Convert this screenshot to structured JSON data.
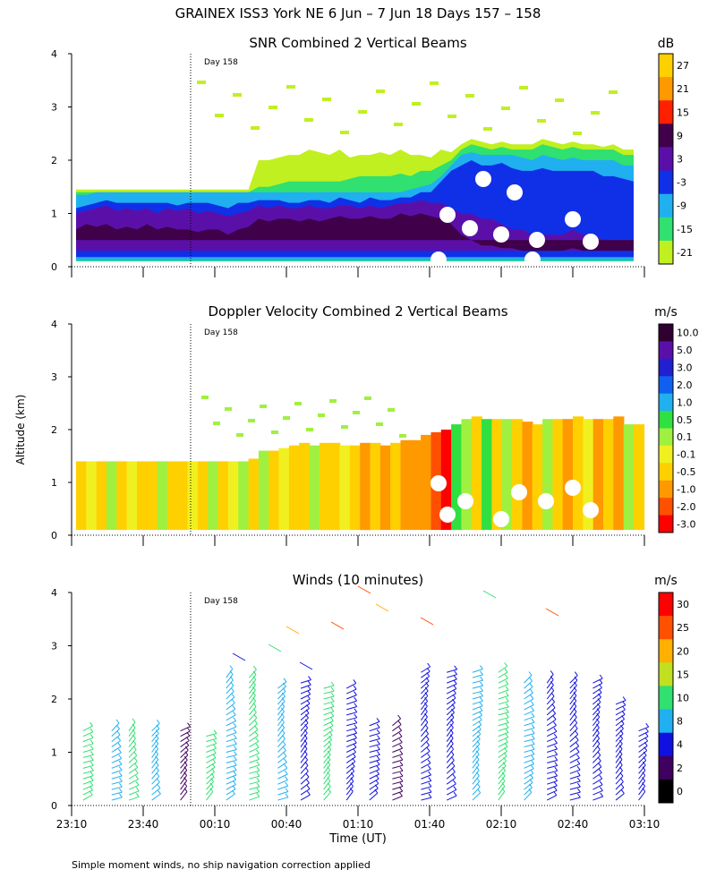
{
  "header": {
    "title": "GRAINEX ISS3 York NE   6 Jun –  7 Jun 18 Days 157 – 158",
    "ylabel": "Altitude (km)",
    "xlabel": "Time (UT)",
    "footnote": "Simple moment winds, no ship navigation correction applied",
    "day_marker": "Day 158"
  },
  "chart_data": [
    {
      "type": "heatmap",
      "title": "SNR Combined 2 Vertical Beams",
      "unit": "dB",
      "x_ticks": [
        "23:10",
        "23:40",
        "00:10",
        "00:40",
        "01:10",
        "01:40",
        "02:10",
        "02:40",
        "03:10"
      ],
      "y_ticks": [
        "0",
        "1",
        "2",
        "3",
        "4"
      ],
      "ylim": [
        0,
        4
      ],
      "colorbar": {
        "labels": [
          "27",
          "21",
          "15",
          "9",
          "3",
          "-3",
          "-9",
          "-15",
          "-21"
        ],
        "colors": [
          "#ffd000",
          "#ff9900",
          "#ff2000",
          "#40004a",
          "#5a10a8",
          "#1030e8",
          "#20b0f0",
          "#30e070",
          "#c0f020"
        ]
      },
      "layers": [
        {
          "name": "outer",
          "color": "#c0f020",
          "top": [
            1.45,
            1.45,
            1.45,
            1.45,
            1.45,
            1.45,
            1.45,
            1.45,
            1.45,
            1.45,
            1.45,
            1.45,
            1.45,
            1.45,
            1.45,
            1.45,
            1.45,
            1.45,
            2.0,
            2.0,
            2.05,
            2.1,
            2.1,
            2.2,
            2.15,
            2.1,
            2.2,
            2.05,
            2.1,
            2.1,
            2.15,
            2.1,
            2.2,
            2.1,
            2.1,
            2.05,
            2.2,
            2.15,
            2.3,
            2.4,
            2.35,
            2.3,
            2.35,
            2.3,
            2.3,
            2.3,
            2.4,
            2.35,
            2.3,
            2.35,
            2.3,
            2.3,
            2.25,
            2.3,
            2.2,
            2.2
          ],
          "bottom": 0.1
        },
        {
          "name": "mid",
          "color": "#30e070",
          "top": [
            1.4,
            1.4,
            1.4,
            1.4,
            1.4,
            1.4,
            1.4,
            1.4,
            1.4,
            1.4,
            1.4,
            1.4,
            1.4,
            1.4,
            1.4,
            1.4,
            1.4,
            1.4,
            1.5,
            1.5,
            1.55,
            1.6,
            1.6,
            1.6,
            1.6,
            1.6,
            1.6,
            1.65,
            1.7,
            1.7,
            1.7,
            1.7,
            1.75,
            1.7,
            1.8,
            1.8,
            1.9,
            2.0,
            2.2,
            2.3,
            2.25,
            2.2,
            2.25,
            2.2,
            2.2,
            2.2,
            2.3,
            2.25,
            2.2,
            2.25,
            2.2,
            2.2,
            2.2,
            2.2,
            2.1,
            2.1
          ],
          "bottom": 0.1
        },
        {
          "name": "cyan",
          "color": "#20b0f0",
          "top": [
            1.35,
            1.35,
            1.4,
            1.4,
            1.4,
            1.4,
            1.4,
            1.4,
            1.4,
            1.4,
            1.4,
            1.4,
            1.4,
            1.4,
            1.4,
            1.4,
            1.4,
            1.4,
            1.4,
            1.4,
            1.4,
            1.4,
            1.4,
            1.4,
            1.4,
            1.4,
            1.4,
            1.4,
            1.4,
            1.4,
            1.4,
            1.4,
            1.4,
            1.45,
            1.5,
            1.55,
            1.7,
            1.9,
            2.1,
            2.15,
            2.1,
            2.1,
            2.1,
            2.1,
            2.05,
            2.0,
            2.1,
            2.05,
            2.0,
            2.05,
            2.0,
            2.0,
            2.0,
            2.0,
            1.9,
            1.9
          ],
          "bottom": 0.12
        },
        {
          "name": "blue",
          "color": "#1030e8",
          "top": [
            1.1,
            1.15,
            1.2,
            1.25,
            1.2,
            1.2,
            1.2,
            1.2,
            1.2,
            1.2,
            1.15,
            1.2,
            1.2,
            1.2,
            1.15,
            1.1,
            1.2,
            1.2,
            1.25,
            1.25,
            1.25,
            1.2,
            1.2,
            1.25,
            1.25,
            1.2,
            1.3,
            1.25,
            1.2,
            1.3,
            1.25,
            1.25,
            1.3,
            1.3,
            1.4,
            1.4,
            1.6,
            1.8,
            1.9,
            2.0,
            1.9,
            1.9,
            1.95,
            1.85,
            1.8,
            1.8,
            1.85,
            1.8,
            1.8,
            1.8,
            1.8,
            1.8,
            1.7,
            1.7,
            1.65,
            1.6
          ],
          "bottom": 0.18
        },
        {
          "name": "purple",
          "color": "#5a10a8",
          "top": [
            1.0,
            1.05,
            1.1,
            1.15,
            1.05,
            1.1,
            1.05,
            1.1,
            1.0,
            1.1,
            1.05,
            1.1,
            1.0,
            1.05,
            1.0,
            0.95,
            1.0,
            1.05,
            1.15,
            1.1,
            1.15,
            1.1,
            1.1,
            1.15,
            1.1,
            1.1,
            1.15,
            1.15,
            1.1,
            1.15,
            1.1,
            1.15,
            1.2,
            1.2,
            1.25,
            1.2,
            1.2,
            1.1,
            1.0,
            1.0,
            0.9,
            0.9,
            0.8,
            0.7,
            0.7,
            0.6,
            0.6,
            0.6,
            0.6,
            0.7,
            0.6,
            0.6,
            0.5,
            0.5,
            0.5,
            0.5
          ],
          "bottom": 0.3
        },
        {
          "name": "dark",
          "color": "#40004a",
          "top": [
            0.7,
            0.8,
            0.75,
            0.8,
            0.7,
            0.75,
            0.7,
            0.8,
            0.7,
            0.75,
            0.7,
            0.7,
            0.65,
            0.7,
            0.7,
            0.6,
            0.7,
            0.75,
            0.9,
            0.85,
            0.9,
            0.9,
            0.85,
            0.9,
            0.85,
            0.9,
            0.95,
            0.9,
            0.9,
            0.95,
            0.9,
            0.9,
            1.0,
            0.95,
            1.0,
            0.95,
            0.9,
            0.8,
            0.6,
            0.5,
            0.4,
            0.4,
            0.35,
            0.35,
            0.3,
            0.3,
            0.3,
            0.3,
            0.3,
            0.35,
            0.3,
            0.3,
            0.3,
            0.3,
            0.3,
            0.3
          ],
          "bottom": 0.5
        }
      ]
    },
    {
      "type": "heatmap",
      "title": "Doppler Velocity Combined 2 Vertical Beams",
      "unit": "m/s",
      "x_ticks": [
        "23:10",
        "23:40",
        "00:10",
        "00:40",
        "01:10",
        "01:40",
        "02:10",
        "02:40",
        "03:10"
      ],
      "y_ticks": [
        "0",
        "1",
        "2",
        "3",
        "4"
      ],
      "ylim": [
        0,
        4
      ],
      "colorbar": {
        "labels": [
          "10.0",
          "5.0",
          "3.0",
          "2.0",
          "1.0",
          "0.5",
          "0.1",
          "-0.1",
          "-0.5",
          "-1.0",
          "-2.0",
          "-3.0"
        ],
        "colors": [
          "#300030",
          "#5a10a8",
          "#2020d0",
          "#1060f0",
          "#20b0f0",
          "#30e040",
          "#a0f040",
          "#f0f020",
          "#ffd000",
          "#ff9900",
          "#ff5000",
          "#ff0000"
        ]
      },
      "top": [
        1.4,
        1.4,
        1.4,
        1.4,
        1.4,
        1.4,
        1.4,
        1.4,
        1.4,
        1.4,
        1.4,
        1.4,
        1.4,
        1.4,
        1.4,
        1.4,
        1.4,
        1.45,
        1.6,
        1.6,
        1.65,
        1.7,
        1.75,
        1.7,
        1.75,
        1.75,
        1.7,
        1.7,
        1.75,
        1.75,
        1.7,
        1.75,
        1.8,
        1.8,
        1.9,
        1.95,
        2.0,
        2.1,
        2.2,
        2.25,
        2.2,
        2.2,
        2.2,
        2.2,
        2.15,
        2.1,
        2.2,
        2.2,
        2.2,
        2.25,
        2.2,
        2.2,
        2.2,
        2.25,
        2.1,
        2.1
      ],
      "bands": [
        "#ffd000",
        "#f0f020",
        "#ffd000",
        "#a0f040",
        "#ffd000",
        "#f0f020",
        "#ffd000",
        "#ffd000",
        "#a0f040",
        "#ffd000",
        "#ffd000",
        "#f0f020",
        "#ffd000",
        "#a0f040",
        "#ffd000",
        "#f0f020",
        "#a0f040",
        "#ffd000",
        "#a0f040",
        "#ffd000",
        "#f0f020",
        "#ffd000",
        "#ffd000",
        "#a0f040",
        "#ffd000",
        "#ffd000",
        "#f0f020",
        "#ffd000",
        "#ff9900",
        "#ffd000",
        "#ff9900",
        "#ffd000",
        "#ff9900",
        "#ff9900",
        "#ff9900",
        "#ff5000",
        "#ff0000",
        "#30e040",
        "#a0f040",
        "#ffd000",
        "#30e040",
        "#ffd000",
        "#a0f040",
        "#ffd000",
        "#ff9900",
        "#ffd000",
        "#a0f040",
        "#ffd000",
        "#ff9900",
        "#ffd000",
        "#f0f020",
        "#ff9900",
        "#ffd000",
        "#ff9900",
        "#a0f040",
        "#ffd000"
      ]
    },
    {
      "type": "scatter",
      "title": "Winds (10 minutes)",
      "unit": "m/s",
      "x_ticks": [
        "23:10",
        "23:40",
        "00:10",
        "00:40",
        "01:10",
        "01:40",
        "02:10",
        "02:40",
        "03:10"
      ],
      "y_ticks": [
        "0",
        "1",
        "2",
        "3",
        "4"
      ],
      "ylim": [
        0,
        4
      ],
      "colorbar": {
        "labels": [
          "30",
          "25",
          "20",
          "15",
          "10",
          "8",
          "4",
          "2",
          "0"
        ],
        "colors": [
          "#ff0000",
          "#ff5000",
          "#ffb000",
          "#c0e020",
          "#30e070",
          "#20b0f0",
          "#1010e0",
          "#400060",
          "#000000"
        ]
      },
      "profiles": [
        {
          "t": 0.02,
          "top": 1.45,
          "color": "#30e070"
        },
        {
          "t": 0.07,
          "top": 1.45,
          "color": "#20b0f0"
        },
        {
          "t": 0.1,
          "top": 1.45,
          "color": "#30e070"
        },
        {
          "t": 0.14,
          "top": 1.45,
          "color": "#20b0f0"
        },
        {
          "t": 0.19,
          "top": 1.45,
          "color": "#400060"
        },
        {
          "t": 0.235,
          "top": 1.35,
          "color": "#30e070"
        },
        {
          "t": 0.27,
          "top": 2.5,
          "color": "#20b0f0"
        },
        {
          "t": 0.31,
          "top": 2.45,
          "color": "#30e070"
        },
        {
          "t": 0.36,
          "top": 2.3,
          "color": "#20b0f0"
        },
        {
          "t": 0.4,
          "top": 2.4,
          "color": "#1010e0"
        },
        {
          "t": 0.44,
          "top": 2.3,
          "color": "#30e070"
        },
        {
          "t": 0.48,
          "top": 2.3,
          "color": "#1010e0"
        },
        {
          "t": 0.52,
          "top": 1.6,
          "color": "#1010e0"
        },
        {
          "t": 0.56,
          "top": 1.6,
          "color": "#400060"
        },
        {
          "t": 0.61,
          "top": 2.6,
          "color": "#1010e0"
        },
        {
          "t": 0.655,
          "top": 2.6,
          "color": "#1010e0"
        },
        {
          "t": 0.7,
          "top": 2.6,
          "color": "#20b0f0"
        },
        {
          "t": 0.745,
          "top": 2.6,
          "color": "#30e070"
        },
        {
          "t": 0.79,
          "top": 2.4,
          "color": "#20b0f0"
        },
        {
          "t": 0.83,
          "top": 2.4,
          "color": "#1010e0"
        },
        {
          "t": 0.87,
          "top": 2.4,
          "color": "#1010e0"
        },
        {
          "t": 0.91,
          "top": 2.35,
          "color": "#1010e0"
        },
        {
          "t": 0.95,
          "top": 2.0,
          "color": "#1010e0"
        },
        {
          "t": 0.99,
          "top": 1.5,
          "color": "#1010e0"
        }
      ]
    }
  ]
}
